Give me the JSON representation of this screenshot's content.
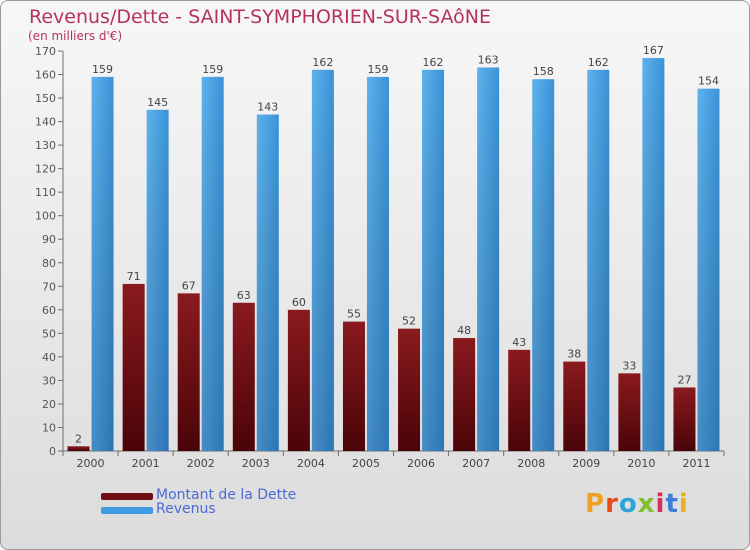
{
  "title": "Revenus/Dette - SAINT-SYMPHORIEN-SUR-SAôNE",
  "subtitle": "(en milliers d'€)",
  "logo_text": "Proxiti",
  "colors": {
    "title": "#b5325f",
    "dette": "#6e0d12",
    "revenus": "#3f9be0",
    "legend_text": "#4a6ad8"
  },
  "legend": [
    {
      "label": "Montant de la Dette",
      "color": "#6e0d12"
    },
    {
      "label": "Revenus",
      "color": "#3f9be0"
    }
  ],
  "chart_data": {
    "type": "bar",
    "categories": [
      "2000",
      "2001",
      "2002",
      "2003",
      "2004",
      "2005",
      "2006",
      "2007",
      "2008",
      "2009",
      "2010",
      "2011"
    ],
    "series": [
      {
        "name": "Montant de la Dette",
        "values": [
          2,
          71,
          67,
          63,
          60,
          55,
          52,
          48,
          43,
          38,
          33,
          27
        ]
      },
      {
        "name": "Revenus",
        "values": [
          159,
          145,
          159,
          143,
          162,
          159,
          162,
          163,
          158,
          162,
          167,
          154
        ]
      }
    ],
    "ylim": [
      0,
      170
    ],
    "yticks": [
      0,
      10,
      20,
      30,
      40,
      50,
      60,
      70,
      80,
      90,
      100,
      110,
      120,
      130,
      140,
      150,
      160,
      170
    ],
    "grid": false,
    "legend_position": "bottom-left"
  }
}
